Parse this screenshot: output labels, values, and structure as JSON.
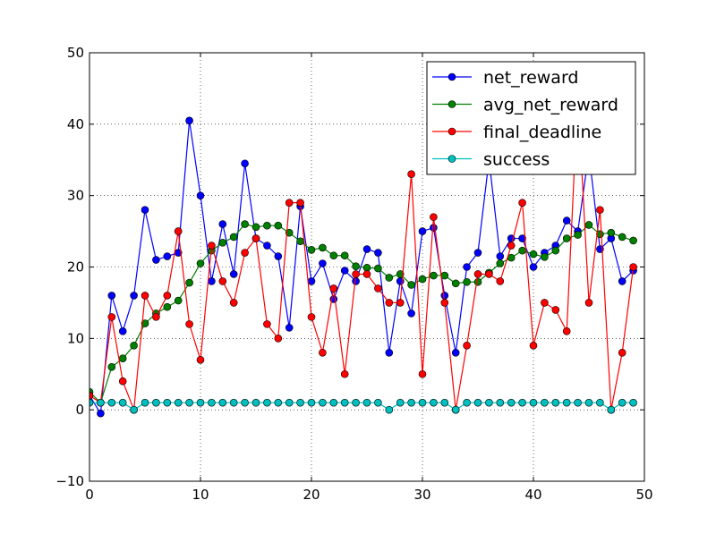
{
  "chart_data": {
    "type": "line",
    "title": "",
    "xlabel": "",
    "ylabel": "",
    "xlim": [
      0,
      50
    ],
    "ylim": [
      -10,
      50
    ],
    "x_ticks": [
      0,
      10,
      20,
      30,
      40,
      50
    ],
    "y_ticks": [
      -10,
      0,
      10,
      20,
      30,
      40,
      50
    ],
    "x_tick_labels": [
      "0",
      "10",
      "20",
      "30",
      "40",
      "50"
    ],
    "y_tick_labels": [
      "−10",
      "0",
      "10",
      "20",
      "30",
      "40",
      "50"
    ],
    "grid": true,
    "legend_position": "upper right",
    "x": [
      0,
      1,
      2,
      3,
      4,
      5,
      6,
      7,
      8,
      9,
      10,
      11,
      12,
      13,
      14,
      15,
      16,
      17,
      18,
      19,
      20,
      21,
      22,
      23,
      24,
      25,
      26,
      27,
      28,
      29,
      30,
      31,
      32,
      33,
      34,
      35,
      36,
      37,
      38,
      39,
      40,
      41,
      42,
      43,
      44,
      45,
      46,
      47,
      48,
      49
    ],
    "series": [
      {
        "name": "net_reward",
        "color": "#0000ff",
        "values": [
          2,
          -0.5,
          16,
          11,
          16,
          28,
          21,
          21.5,
          22,
          40.5,
          30,
          18,
          26,
          19,
          34.5,
          24,
          23,
          21.5,
          11.5,
          28.5,
          18,
          20.5,
          15.5,
          19.5,
          18,
          22.5,
          22,
          8,
          18,
          13.5,
          25,
          25.5,
          16,
          8,
          20,
          22,
          35,
          21.5,
          24,
          24,
          20,
          22,
          23,
          26.5,
          25,
          36,
          22.5,
          24,
          18,
          19.5
        ]
      },
      {
        "name": "avg_net_reward",
        "color": "#008000",
        "values": [
          2.5,
          1,
          6,
          7.2,
          9,
          12.1,
          13.5,
          14.4,
          15.3,
          17.8,
          20.5,
          22.3,
          23.4,
          24.2,
          26,
          25.6,
          25.8,
          25.8,
          24.8,
          23.6,
          22.4,
          22.7,
          21.6,
          21.6,
          20.1,
          19.9,
          19.8,
          18.5,
          19,
          17.5,
          18.3,
          18.8,
          18.8,
          17.7,
          17.9,
          17.9,
          19.2,
          20.5,
          21.3,
          22.3,
          21.8,
          21.4,
          22.3,
          24,
          24.5,
          25.9,
          24.6,
          24.8,
          24.2,
          23.7
        ]
      },
      {
        "name": "final_deadline",
        "color": "#ff0000",
        "values": [
          2,
          1,
          13,
          4,
          0,
          16,
          13,
          16,
          25,
          12,
          7,
          23,
          18,
          15,
          22,
          24,
          12,
          10,
          29,
          29,
          13,
          8,
          17,
          5,
          19,
          19,
          17,
          15,
          15,
          33,
          5,
          27,
          15,
          0,
          9,
          19,
          19,
          18,
          23,
          29,
          9,
          15,
          14,
          11,
          44,
          15,
          28,
          0,
          8,
          20
        ]
      },
      {
        "name": "success",
        "color": "#00bfbf",
        "values": [
          1,
          1,
          1,
          1,
          0,
          1,
          1,
          1,
          1,
          1,
          1,
          1,
          1,
          1,
          1,
          1,
          1,
          1,
          1,
          1,
          1,
          1,
          1,
          1,
          1,
          1,
          1,
          0,
          1,
          1,
          1,
          1,
          1,
          0,
          1,
          1,
          1,
          1,
          1,
          1,
          1,
          1,
          1,
          1,
          1,
          1,
          1,
          0,
          1,
          1
        ]
      }
    ]
  }
}
